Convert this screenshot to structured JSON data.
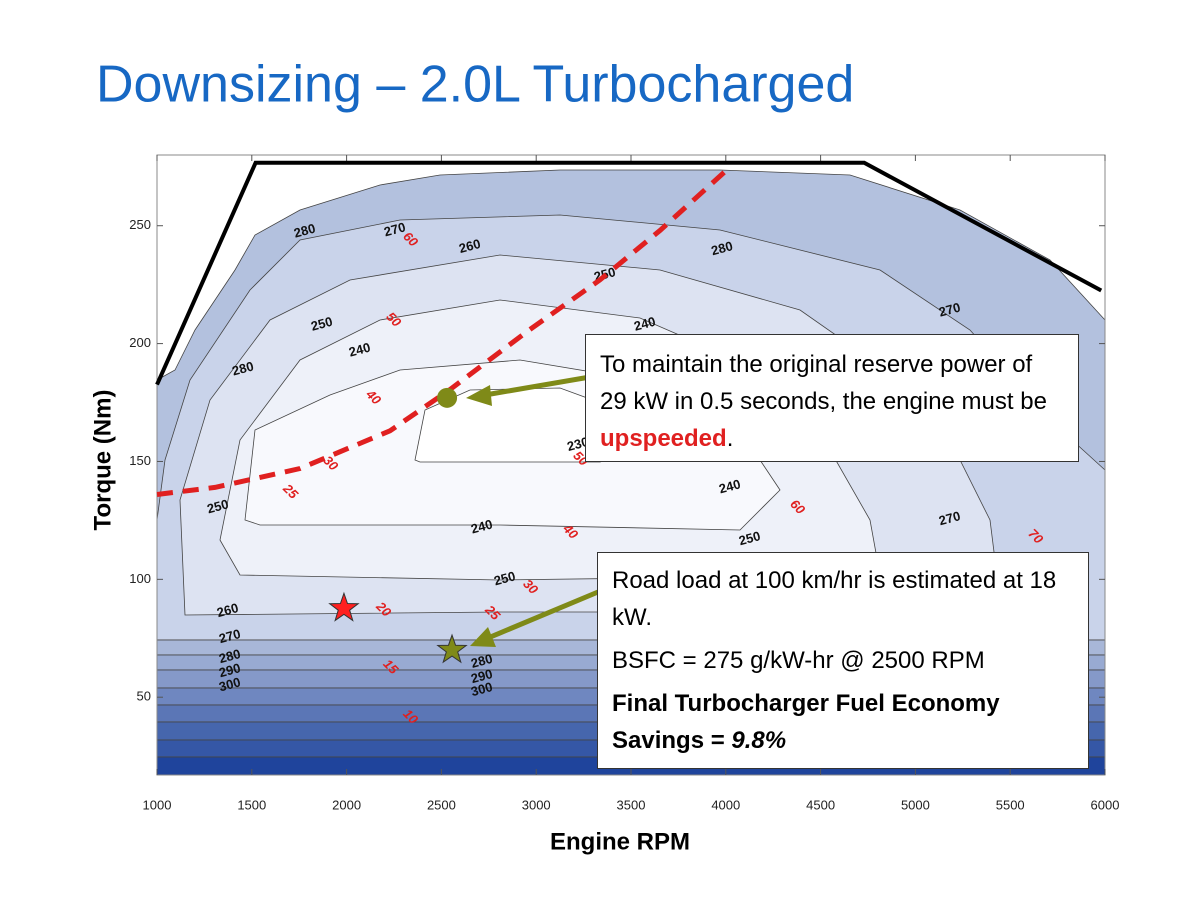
{
  "chart_data": {
    "type": "contour",
    "title": "Downsizing – 2.0L Turbocharged",
    "xlabel": "Engine RPM",
    "ylabel": "Torque (Nm)",
    "xlim": [
      1000,
      6000
    ],
    "ylim": [
      17,
      280
    ],
    "xticks": [
      1000,
      1500,
      2000,
      2500,
      3000,
      3500,
      4000,
      4500,
      5000,
      5500,
      6000
    ],
    "yticks": [
      50,
      100,
      150,
      200,
      250
    ],
    "lines": [
      {
        "color": "#000000",
        "style": "solid",
        "x": [
          1000,
          1520,
          4730,
          5980
        ],
        "y": [
          182.6,
          276.7,
          276.7,
          222.5
        ]
      },
      {
        "color": "#e02020",
        "style": "dashed",
        "x": [
          1000,
          1306,
          1754,
          2229,
          2545,
          2967,
          3336,
          3653,
          3996
        ],
        "y": [
          136,
          139,
          147,
          163,
          180.5,
          206,
          227,
          248,
          273
        ]
      }
    ],
    "markers": [
      {
        "shape": "star",
        "color": "#ff2020",
        "x": 1986,
        "y": 87.7
      },
      {
        "shape": "star",
        "color": "#7f8a18",
        "x": 2556,
        "y": 70
      },
      {
        "shape": "circle",
        "color": "#7f8a18",
        "x": 2530,
        "y": 177
      }
    ],
    "bsfc_labels": [
      {
        "value": 280,
        "x": 1780,
        "y": 247.5
      },
      {
        "value": 270,
        "x": 2255,
        "y": 248
      },
      {
        "value": 260,
        "x": 2651,
        "y": 241
      },
      {
        "value": 250,
        "x": 3363,
        "y": 229
      },
      {
        "value": 240,
        "x": 3574,
        "y": 208
      },
      {
        "value": 280,
        "x": 3981,
        "y": 240
      },
      {
        "value": 270,
        "x": 5182,
        "y": 214
      },
      {
        "value": 250,
        "x": 1870,
        "y": 208
      },
      {
        "value": 240,
        "x": 2070,
        "y": 197
      },
      {
        "value": 280,
        "x": 1454,
        "y": 189
      },
      {
        "value": 230,
        "x": 3221,
        "y": 157
      },
      {
        "value": 240,
        "x": 4022,
        "y": 139
      },
      {
        "value": 250,
        "x": 1322,
        "y": 130.5
      },
      {
        "value": 240,
        "x": 2714,
        "y": 122
      },
      {
        "value": 250,
        "x": 4127,
        "y": 117
      },
      {
        "value": 270,
        "x": 5182,
        "y": 125.5
      },
      {
        "value": 250,
        "x": 2835,
        "y": 100
      },
      {
        "value": 260,
        "x": 1374,
        "y": 86.5
      },
      {
        "value": 270,
        "x": 1385,
        "y": 75.5
      },
      {
        "value": 280,
        "x": 1385,
        "y": 67
      },
      {
        "value": 290,
        "x": 1385,
        "y": 61
      },
      {
        "value": 300,
        "x": 1385,
        "y": 55
      },
      {
        "value": 280,
        "x": 2714,
        "y": 65
      },
      {
        "value": 290,
        "x": 2714,
        "y": 58.5
      },
      {
        "value": 300,
        "x": 2714,
        "y": 53
      }
    ],
    "power_labels": [
      {
        "value": 60,
        "x": 2334,
        "y": 244
      },
      {
        "value": 50,
        "x": 2245,
        "y": 210
      },
      {
        "value": 40,
        "x": 2139,
        "y": 177
      },
      {
        "value": 30,
        "x": 1913,
        "y": 149
      },
      {
        "value": 25,
        "x": 1701,
        "y": 137
      },
      {
        "value": 50,
        "x": 3231,
        "y": 151
      },
      {
        "value": 40,
        "x": 3178,
        "y": 120
      },
      {
        "value": 30,
        "x": 2967,
        "y": 96.6
      },
      {
        "value": 25,
        "x": 2767,
        "y": 85.6
      },
      {
        "value": 20,
        "x": 2192,
        "y": 87
      },
      {
        "value": 15,
        "x": 2229,
        "y": 62.7
      },
      {
        "value": 10,
        "x": 2334,
        "y": 41.5
      },
      {
        "value": 60,
        "x": 4375,
        "y": 130.5
      },
      {
        "value": 70,
        "x": 5631,
        "y": 118
      }
    ],
    "annotations": [
      {
        "text": "To maintain the original reserve power of 29 kW in 0.5 seconds, the engine must be ",
        "highlight": "upspeeded",
        "end": "."
      },
      {
        "line1": "Road load at 100 km/hr is estimated at 18 kW.",
        "line2": "BSFC = 275 g/kW-hr @ 2500 RPM",
        "bold": "Final Turbocharger Fuel Economy Savings = ",
        "italic": "9.8%"
      }
    ]
  }
}
